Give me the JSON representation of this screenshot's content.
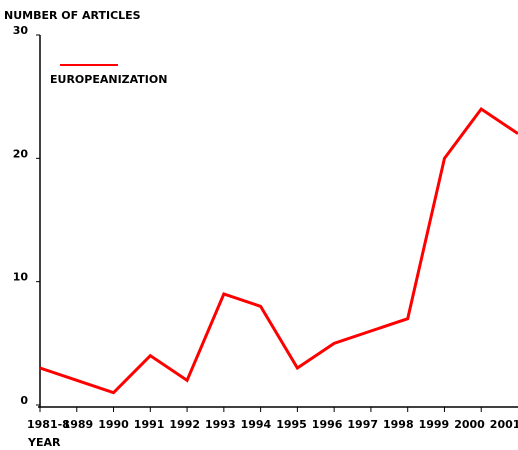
{
  "chart_data": {
    "type": "line",
    "y_label": "NUMBER OF ARTICLES",
    "x_label": "YEAR",
    "categories": [
      "1981-8",
      "1989",
      "1990",
      "1991",
      "1992",
      "1993",
      "1994",
      "1995",
      "1996",
      "1997",
      "1998",
      "1999",
      "2000",
      "2001"
    ],
    "series": [
      {
        "name": "EUROPEANIZATION",
        "color": "#ff0000",
        "values": [
          3,
          2,
          1,
          4,
          2,
          9,
          8,
          3,
          5,
          6,
          7,
          20,
          24,
          22
        ]
      }
    ],
    "ylim": [
      0,
      30
    ],
    "yticks": [
      0,
      10,
      20,
      30
    ]
  }
}
